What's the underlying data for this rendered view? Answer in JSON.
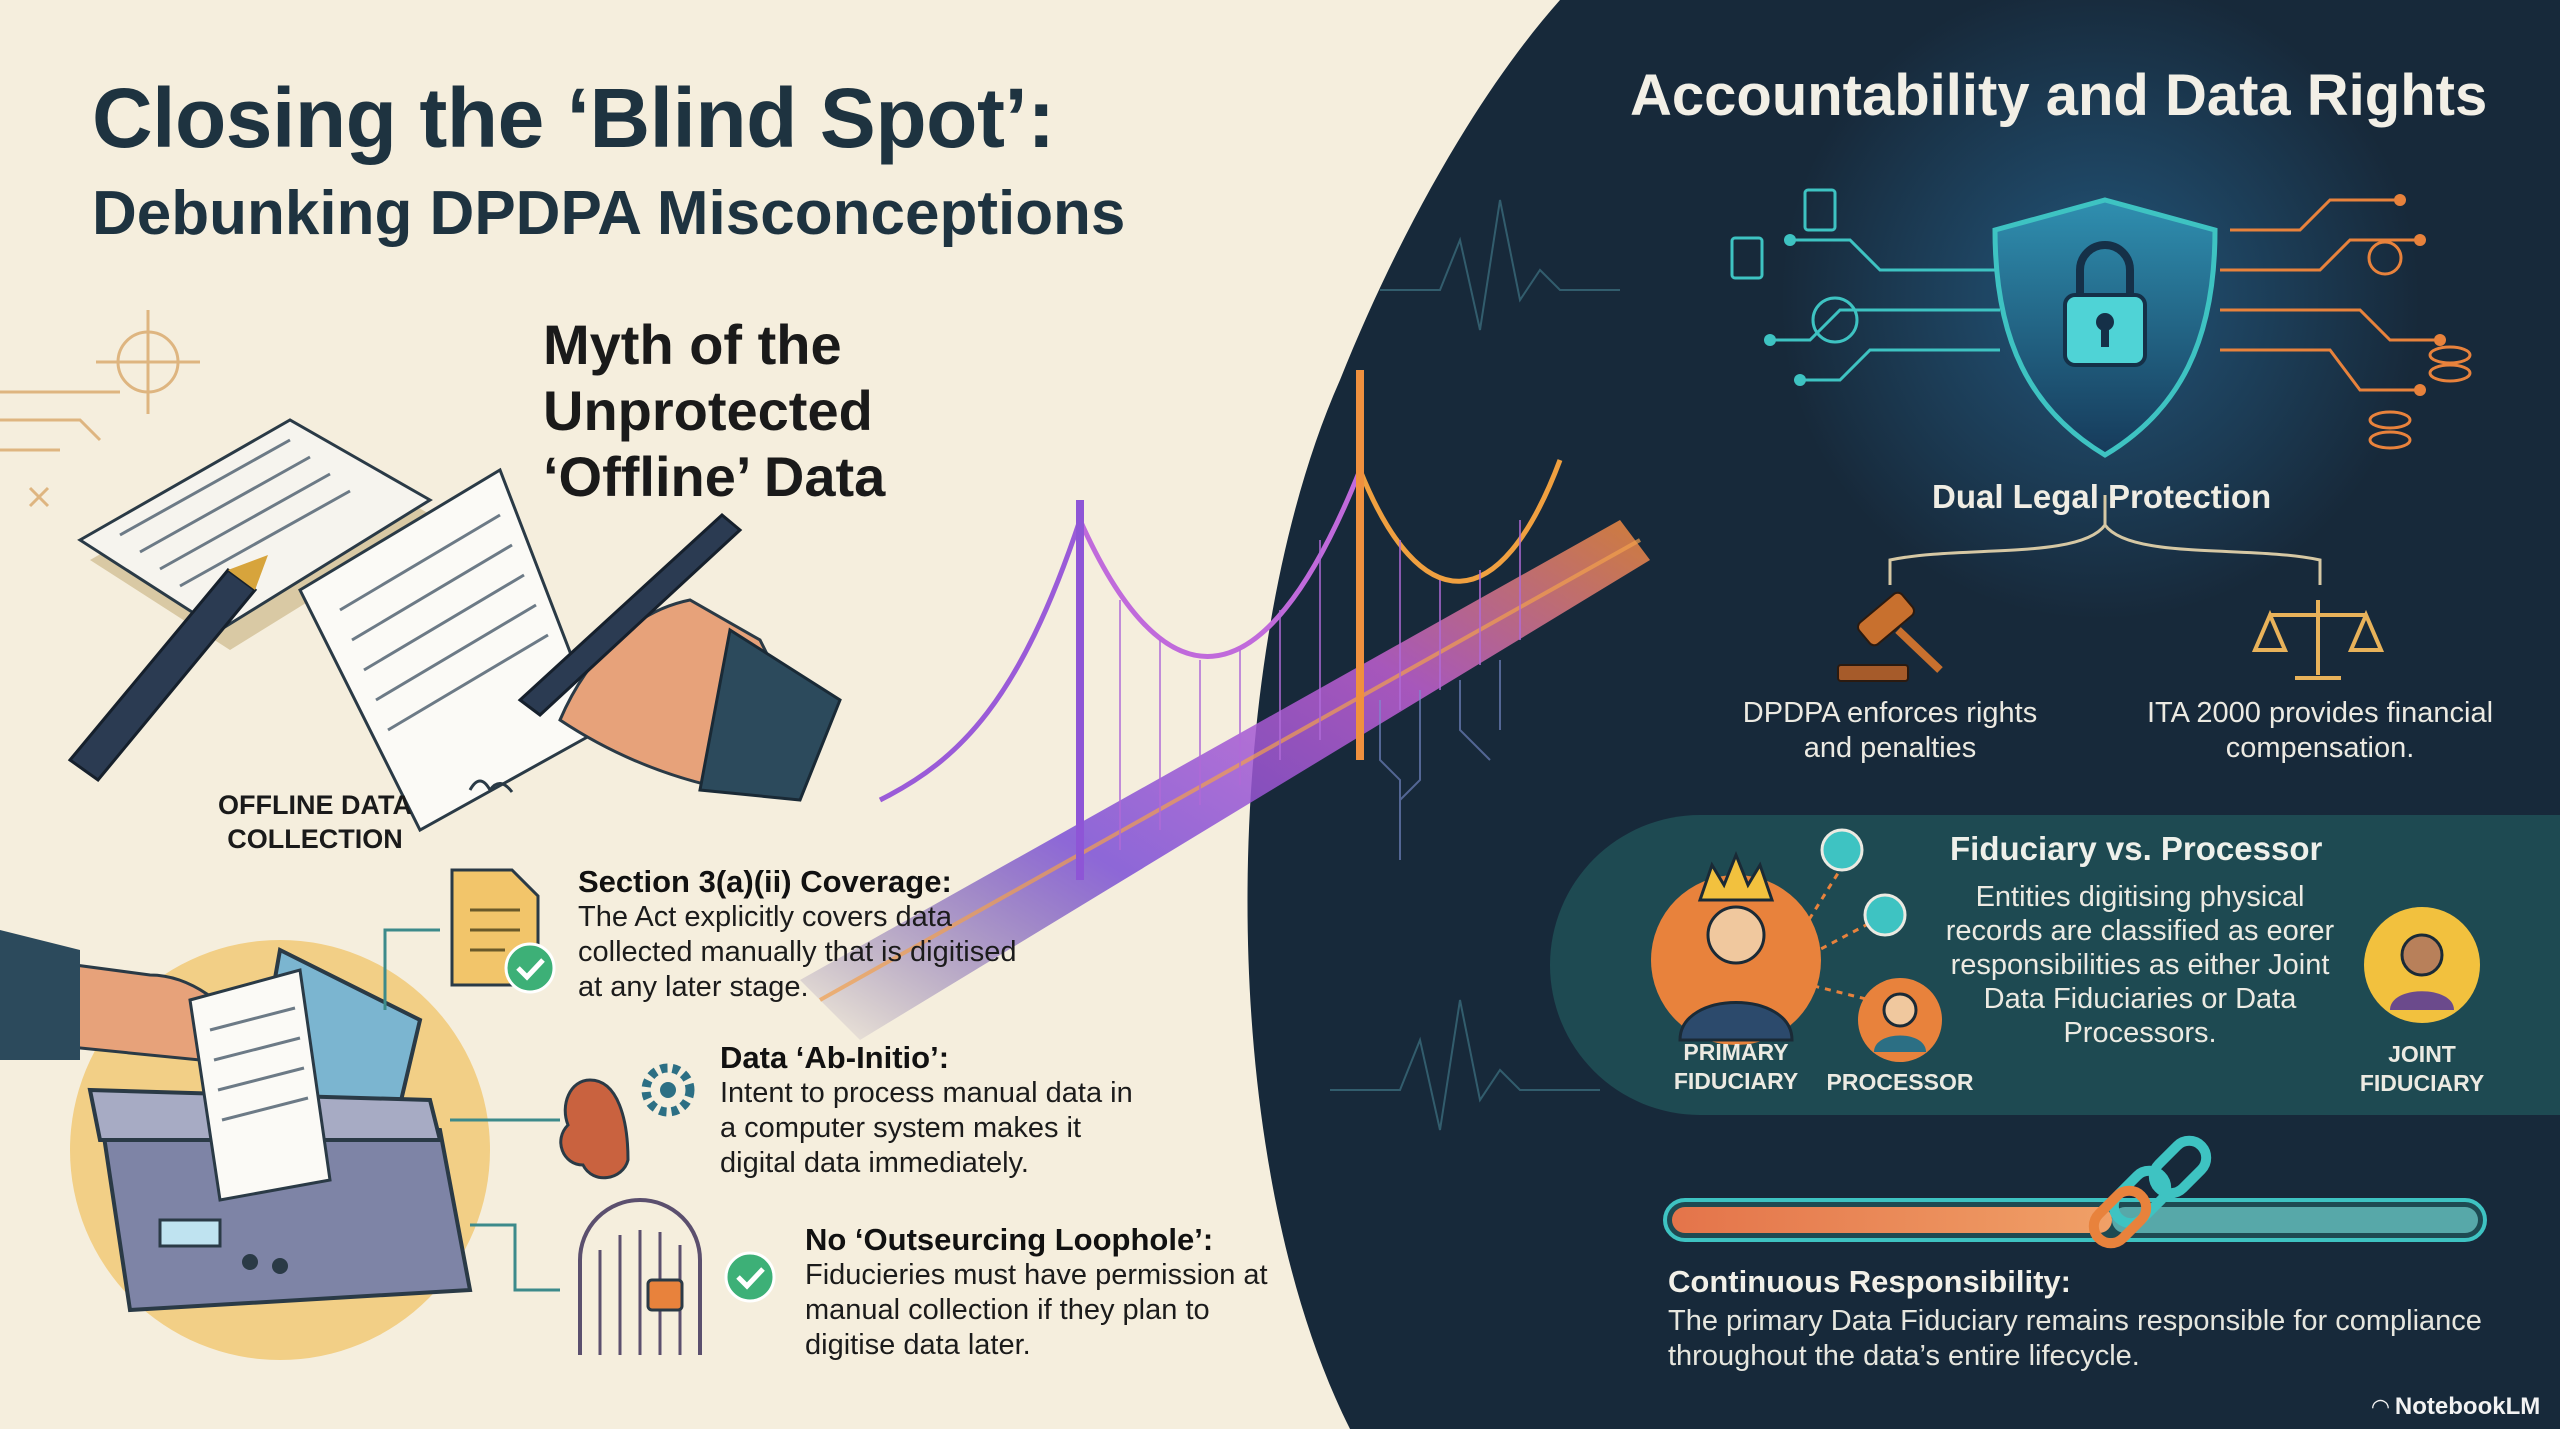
{
  "title": "Closing the ‘Blind Spot’:",
  "subtitle": "Debunking DPDPA Misconceptions",
  "left": {
    "myth_title": "Myth of the Unprotected ‘Offline’ Data",
    "offline_caption": "OFFLINE DATA COLLECTION",
    "blocks": [
      {
        "heading": "Section 3(a)(ii) Coverage:",
        "body": "The Act explicitly covers data collected manually that is digitised at any later stage."
      },
      {
        "heading": "Data ‘Ab-Initio’:",
        "body": "Intent to process manual data in a computer system makes it digital data immediately."
      },
      {
        "heading": "No ‘Outseurcing Loophole’:",
        "body": "Fiducieries must have permission at manual collection if they plan to digitise data later."
      }
    ]
  },
  "right": {
    "title": "Accountability and Data Rights",
    "dual_title": "Dual Legal Protection",
    "dpdpa_text": "DPDPA enforces rights and penalties",
    "ita_text": "ITA 2000 provides financial compensation.",
    "fiduciary_heading": "Fiduciary vs. Processor",
    "fiduciary_body": "Entities digitising physical records are classified as eorer responsibilities as either Joint Data Fiduciaries or Data Processors.",
    "primary_label": "PRIMARY FIDUCIARY",
    "processor_label": "PROCESSOR",
    "joint_label": "JOINT FIDUCIARY",
    "continuous_heading": "Continuous Responsibility:",
    "continuous_body": "The primary Data Fiduciary remains responsible for compliance throughout the data’s entire lifecycle.",
    "progress": 0.57
  },
  "brand": "NotebookLM",
  "colors": {
    "cream": "#f5eedd",
    "navy": "#17293a",
    "teal_panel": "#1e4a52",
    "orange": "#e8823c",
    "purple": "#8a5ad0",
    "teal": "#3ec3c2"
  }
}
